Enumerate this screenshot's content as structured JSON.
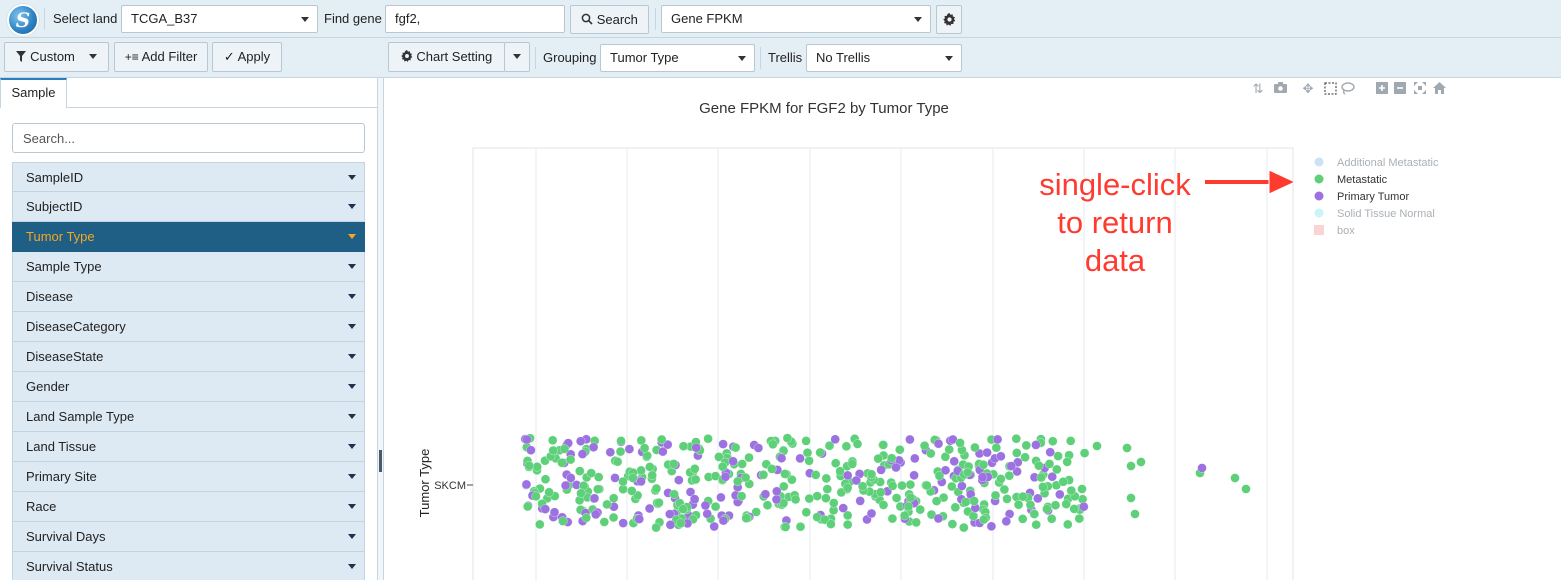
{
  "toolbar": {
    "select_land_label": "Select land",
    "land_value": "TCGA_B37",
    "find_gene_label": "Find gene",
    "gene_value": "fgf2,",
    "search_label": "Search",
    "measure_value": "Gene FPKM"
  },
  "toolbar2": {
    "custom_label": "Custom",
    "add_filter_label": "Add Filter",
    "apply_label": "Apply",
    "chart_setting_label": "Chart Setting",
    "grouping_label": "Grouping",
    "grouping_value": "Tumor Type",
    "trellis_label": "Trellis",
    "trellis_value": "No Trellis"
  },
  "sidebar": {
    "tab_label": "Sample",
    "search_placeholder": "Search...",
    "items": [
      {
        "label": "SampleID",
        "active": false
      },
      {
        "label": "SubjectID",
        "active": false
      },
      {
        "label": "Tumor Type",
        "active": true
      },
      {
        "label": "Sample Type",
        "active": false
      },
      {
        "label": "Disease",
        "active": false
      },
      {
        "label": "DiseaseCategory",
        "active": false
      },
      {
        "label": "DiseaseState",
        "active": false
      },
      {
        "label": "Gender",
        "active": false
      },
      {
        "label": "Land Sample Type",
        "active": false
      },
      {
        "label": "Land Tissue",
        "active": false
      },
      {
        "label": "Primary Site",
        "active": false
      },
      {
        "label": "Race",
        "active": false
      },
      {
        "label": "Survival Days",
        "active": false
      },
      {
        "label": "Survival Status",
        "active": false
      }
    ]
  },
  "chart_data": {
    "type": "scatter",
    "title": "Gene FPKM for FGF2 by Tumor Type",
    "ylabel": "Tumor Type",
    "xlabel": "",
    "categories": [
      "SKCM"
    ],
    "grid": true,
    "legend_placement": "top-right",
    "legend": [
      {
        "name": "Additional Metastatic",
        "color": "#a9cdef",
        "hidden": true
      },
      {
        "name": "Metastatic",
        "color": "#5fd07a",
        "hidden": false
      },
      {
        "name": "Primary Tumor",
        "color": "#9b72e0",
        "hidden": false
      },
      {
        "name": "Solid Tissue Normal",
        "color": "#a6ecf3",
        "hidden": true
      },
      {
        "name": "box",
        "color": "#f7b6b6",
        "hidden": true
      }
    ]
  },
  "annotation": {
    "line1": "single-click",
    "line2": "to return",
    "line3": "data"
  },
  "colors": {
    "accent": "#2a7fc1",
    "active_item_bg": "#1f5f86",
    "active_item_text": "#f5a623",
    "annotation": "#ff3b30"
  }
}
